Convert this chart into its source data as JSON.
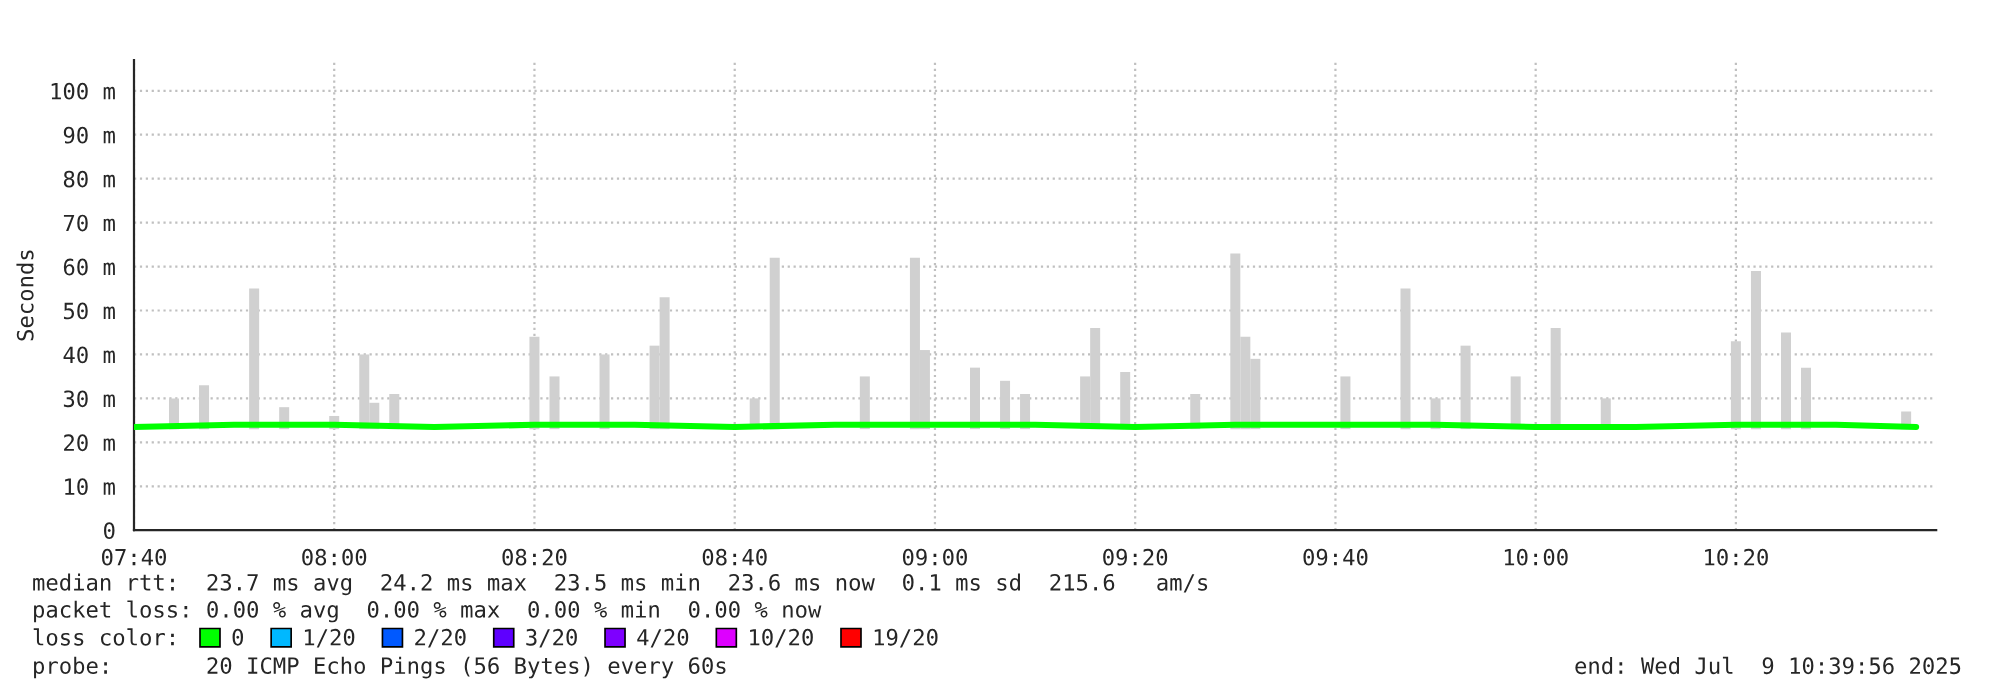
{
  "chart_data": {
    "type": "line",
    "ylabel": "Seconds",
    "legend_title": "loss color:",
    "legend": "bottom",
    "grid": true,
    "marker": "none",
    "line_style": "solid",
    "xlim": [
      7.6667,
      10.6667
    ],
    "xticks": [
      {
        "value": 7.6667,
        "label": "07:40"
      },
      {
        "value": 8,
        "label": "08:00"
      },
      {
        "value": 8.3333,
        "label": "08:20"
      },
      {
        "value": 8.6667,
        "label": "08:40"
      },
      {
        "value": 9,
        "label": "09:00"
      },
      {
        "value": 9.3333,
        "label": "09:20"
      },
      {
        "value": 9.6667,
        "label": "09:40"
      },
      {
        "value": 10,
        "label": "10:00"
      },
      {
        "value": 10.3333,
        "label": "10:20"
      }
    ],
    "ylim": [
      0,
      107
    ],
    "yticks": [
      {
        "value": 0,
        "label": "0"
      },
      {
        "value": 10,
        "label": "10 m"
      },
      {
        "value": 20,
        "label": "20 m"
      },
      {
        "value": 30,
        "label": "30 m"
      },
      {
        "value": 40,
        "label": "40 m"
      },
      {
        "value": 50,
        "label": "50 m"
      },
      {
        "value": 60,
        "label": "60 m"
      },
      {
        "value": 70,
        "label": "70 m"
      },
      {
        "value": 80,
        "label": "80 m"
      },
      {
        "value": 90,
        "label": "90 m"
      },
      {
        "value": 100,
        "label": "100 m"
      }
    ],
    "series": [
      {
        "type": "bar",
        "color": "#d0d0d0",
        "x": [
          7.7333,
          7.7833,
          7.8667,
          7.9167,
          8.0,
          8.05,
          8.0667,
          8.1,
          8.3333,
          8.3667,
          8.45,
          8.5333,
          8.55,
          8.7,
          8.7333,
          8.8833,
          8.9667,
          8.9833,
          9.0667,
          9.1167,
          9.15,
          9.25,
          9.2667,
          9.3167,
          9.4333,
          9.5,
          9.5167,
          9.5333,
          9.6833,
          9.7833,
          9.8333,
          9.8833,
          9.9667,
          10.0333,
          10.1167,
          10.3333,
          10.3667,
          10.4167,
          10.45,
          10.6167
        ],
        "base": [
          23,
          23,
          23,
          23,
          23,
          23,
          23,
          23,
          23,
          23,
          23,
          23,
          23,
          23,
          23,
          23,
          23,
          23,
          23,
          23,
          23,
          23,
          23,
          23,
          23,
          23,
          23,
          23,
          23,
          23,
          23,
          23,
          23,
          23,
          23,
          23,
          23,
          23,
          23,
          23
        ],
        "values": [
          7,
          10,
          32,
          5,
          3,
          17,
          6,
          8,
          21,
          12,
          17,
          19,
          30,
          7,
          39,
          12,
          39,
          18,
          14,
          11,
          8,
          12,
          23,
          13,
          8,
          40,
          21,
          16,
          12,
          32,
          7,
          19,
          12,
          23,
          7,
          20,
          36,
          22,
          14,
          4
        ]
      },
      {
        "name": "0",
        "color": "#00ff00",
        "x": [
          7.6667,
          7.8333,
          8.0,
          8.1667,
          8.3333,
          8.5,
          8.6667,
          8.8333,
          9.0,
          9.1667,
          9.3333,
          9.5,
          9.6667,
          9.8333,
          10.0,
          10.1667,
          10.3333,
          10.5,
          10.6333
        ],
        "values": [
          23.5,
          24,
          24,
          23.5,
          24,
          24,
          23.5,
          24,
          24,
          24,
          23.5,
          24,
          24,
          24,
          23.5,
          23.5,
          24,
          24,
          23.5
        ]
      },
      {
        "name": "1/20",
        "color": "#00b8ff"
      },
      {
        "name": "2/20",
        "color": "#0059ff"
      },
      {
        "name": "3/20",
        "color": "#5e00ff"
      },
      {
        "name": "4/20",
        "color": "#7e00ff"
      },
      {
        "name": "10/20",
        "color": "#dd00ff"
      },
      {
        "name": "19/20",
        "color": "#ff0000"
      }
    ],
    "annotations": [
      "median rtt:  23.7 ms avg  24.2 ms max  23.5 ms min  23.6 ms now  0.1 ms sd  215.6   am/s",
      "packet loss: 0.00 % avg  0.00 % max  0.00 % min  0.00 % now",
      "probe:       20 ICMP Echo Pings (56 Bytes) every 60s",
      "end: Wed Jul  9 10:39:56 2025"
    ]
  }
}
